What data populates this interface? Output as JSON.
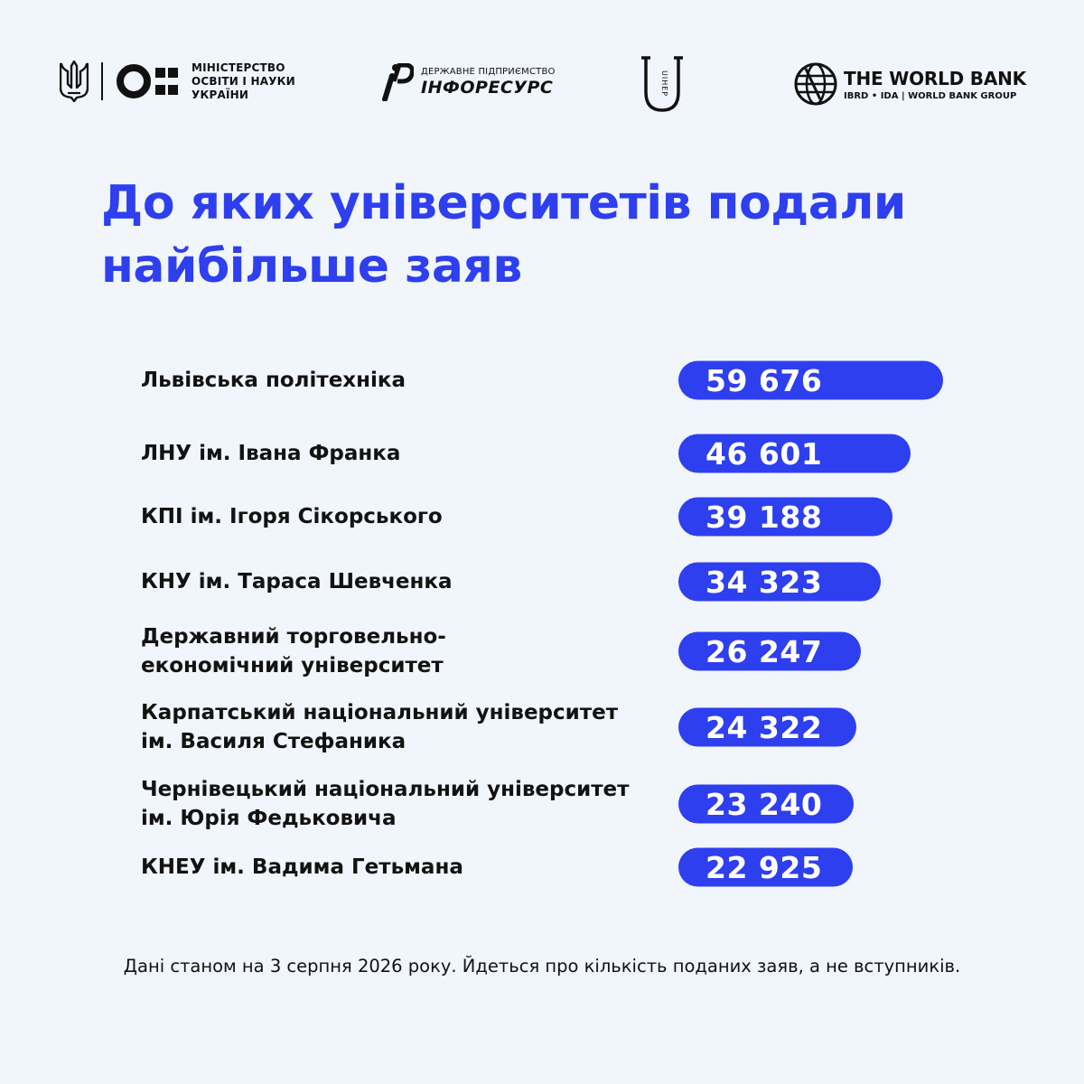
{
  "logos": {
    "ministry": {
      "lines": [
        "МІНІСТЕРСТВО",
        "ОСВІТИ І НАУКИ",
        "УКРАЇНИ"
      ],
      "trident_icon": "trident-icon",
      "mark_icon": "mon-mark-icon"
    },
    "inforesurs": {
      "small": "ДЕРЖАВНЕ ПІДПРИЄМСТВО",
      "big": "ІНФОРЕСУРС",
      "mark_icon": "ip-mark-icon"
    },
    "uihep": {
      "text": "UIHEP"
    },
    "world_bank": {
      "big": "THE WORLD BANK",
      "small": "IBRD • IDA | WORLD BANK GROUP",
      "globe_icon": "globe-icon"
    }
  },
  "colors": {
    "accent": "#2e3ff0",
    "background": "#f1f5fc",
    "text": "#121212"
  },
  "chart_data": {
    "type": "bar",
    "title": "До яких університетів подали найбільше заяв",
    "categories": [
      "Львівська політехніка",
      "ЛНУ ім. Івана Франка",
      "КПІ ім. Ігоря Сікорського",
      "КНУ ім. Тараса Шевченка",
      "Державний торговельно-\nекономічний університет",
      "Карпатський національний університет\nім. Василя Стефаника",
      "Чернівецький національний університет\nім. Юрія Федьковича",
      "КНЕУ ім. Вадима Гетьмана"
    ],
    "values": [
      59676,
      46601,
      39188,
      34323,
      26247,
      24322,
      23240,
      22925
    ],
    "value_labels": [
      "59 676",
      "46 601",
      "39 188",
      "34 323",
      "26 247",
      "24 322",
      "23 240",
      "22 925"
    ],
    "orientation": "horizontal",
    "xlabel": "",
    "ylabel": ""
  },
  "footnote": "Дані станом на 3 серпня 2026 року. Йдеться про кількість поданих заяв, а не вступників."
}
